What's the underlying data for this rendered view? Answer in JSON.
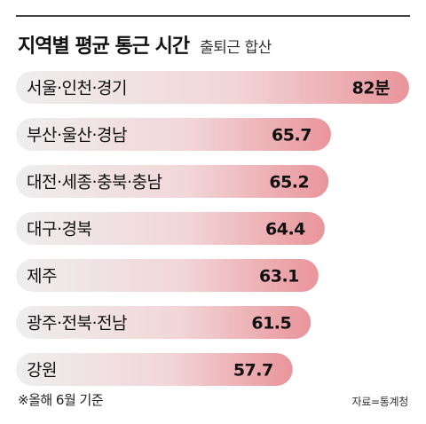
{
  "header": {
    "title": "지역별 평균 통근 시간",
    "subtitle": "출퇴근 합산"
  },
  "footer": {
    "note": "※올해 6월 기준",
    "source": "자료=통계청"
  },
  "colors": {
    "bar_light": "#eeeeee",
    "bar_mid": "#f0c8cb",
    "bar_end": "#e9959b",
    "text": "#111111"
  },
  "chart_data": {
    "type": "bar",
    "orientation": "horizontal",
    "unit": "분",
    "categories": [
      "서울·인천·경기",
      "부산·울산·경남",
      "대전·세종·충북·충남",
      "대구·경북",
      "제주",
      "광주·전북·전남",
      "강원"
    ],
    "values": [
      82,
      65.7,
      65.2,
      64.4,
      63.1,
      61.5,
      57.7
    ],
    "value_labels": [
      "82분",
      "65.7",
      "65.2",
      "64.4",
      "63.1",
      "61.5",
      "57.7"
    ],
    "title": "지역별 평균 통근 시간",
    "subtitle": "출퇴근 합산",
    "xlabel": "",
    "ylabel": "",
    "grid": false,
    "legend": "none"
  }
}
